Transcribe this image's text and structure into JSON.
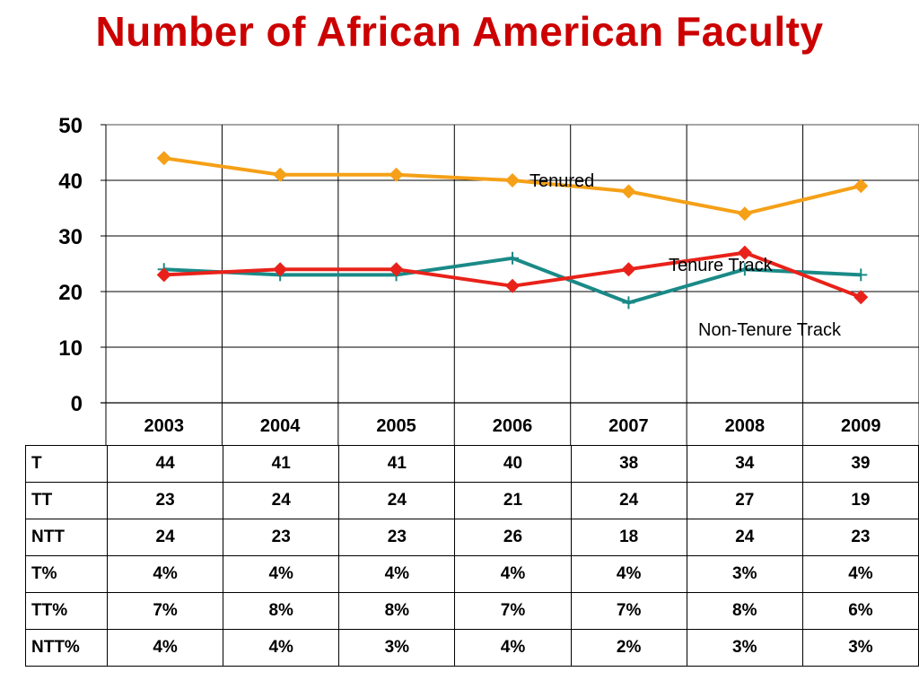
{
  "title": "Number of African American Faculty",
  "chart_data": {
    "type": "line",
    "x": [
      "2003",
      "2004",
      "2005",
      "2006",
      "2007",
      "2008",
      "2009"
    ],
    "ylim": [
      0,
      50
    ],
    "yticks": [
      "0",
      "10",
      "20",
      "30",
      "40",
      "50"
    ],
    "grid": true,
    "series": [
      {
        "name": "Tenured",
        "values": [
          44,
          41,
          41,
          40,
          38,
          34,
          39
        ],
        "color": "#f5a017",
        "marker": "diamond"
      },
      {
        "name": "Tenure Track",
        "values": [
          23,
          24,
          24,
          21,
          24,
          27,
          19
        ],
        "color": "#e8221a",
        "marker": "diamond"
      },
      {
        "name": "Non-Tenure Track",
        "values": [
          24,
          23,
          23,
          26,
          18,
          24,
          23
        ],
        "color": "#1a8a87",
        "marker": "plus"
      }
    ]
  },
  "table": {
    "rows": [
      {
        "label": "T",
        "cells": [
          "44",
          "41",
          "41",
          "40",
          "38",
          "34",
          "39"
        ]
      },
      {
        "label": "TT",
        "cells": [
          "23",
          "24",
          "24",
          "21",
          "24",
          "27",
          "19"
        ]
      },
      {
        "label": "NTT",
        "cells": [
          "24",
          "23",
          "23",
          "26",
          "18",
          "24",
          "23"
        ]
      },
      {
        "label": "T%",
        "cells": [
          "4%",
          "4%",
          "4%",
          "4%",
          "4%",
          "3%",
          "4%"
        ]
      },
      {
        "label": "TT%",
        "cells": [
          "7%",
          "8%",
          "8%",
          "7%",
          "7%",
          "8%",
          "6%"
        ]
      },
      {
        "label": "NTT%",
        "cells": [
          "4%",
          "4%",
          "3%",
          "4%",
          "2%",
          "3%",
          "3%"
        ]
      }
    ]
  }
}
